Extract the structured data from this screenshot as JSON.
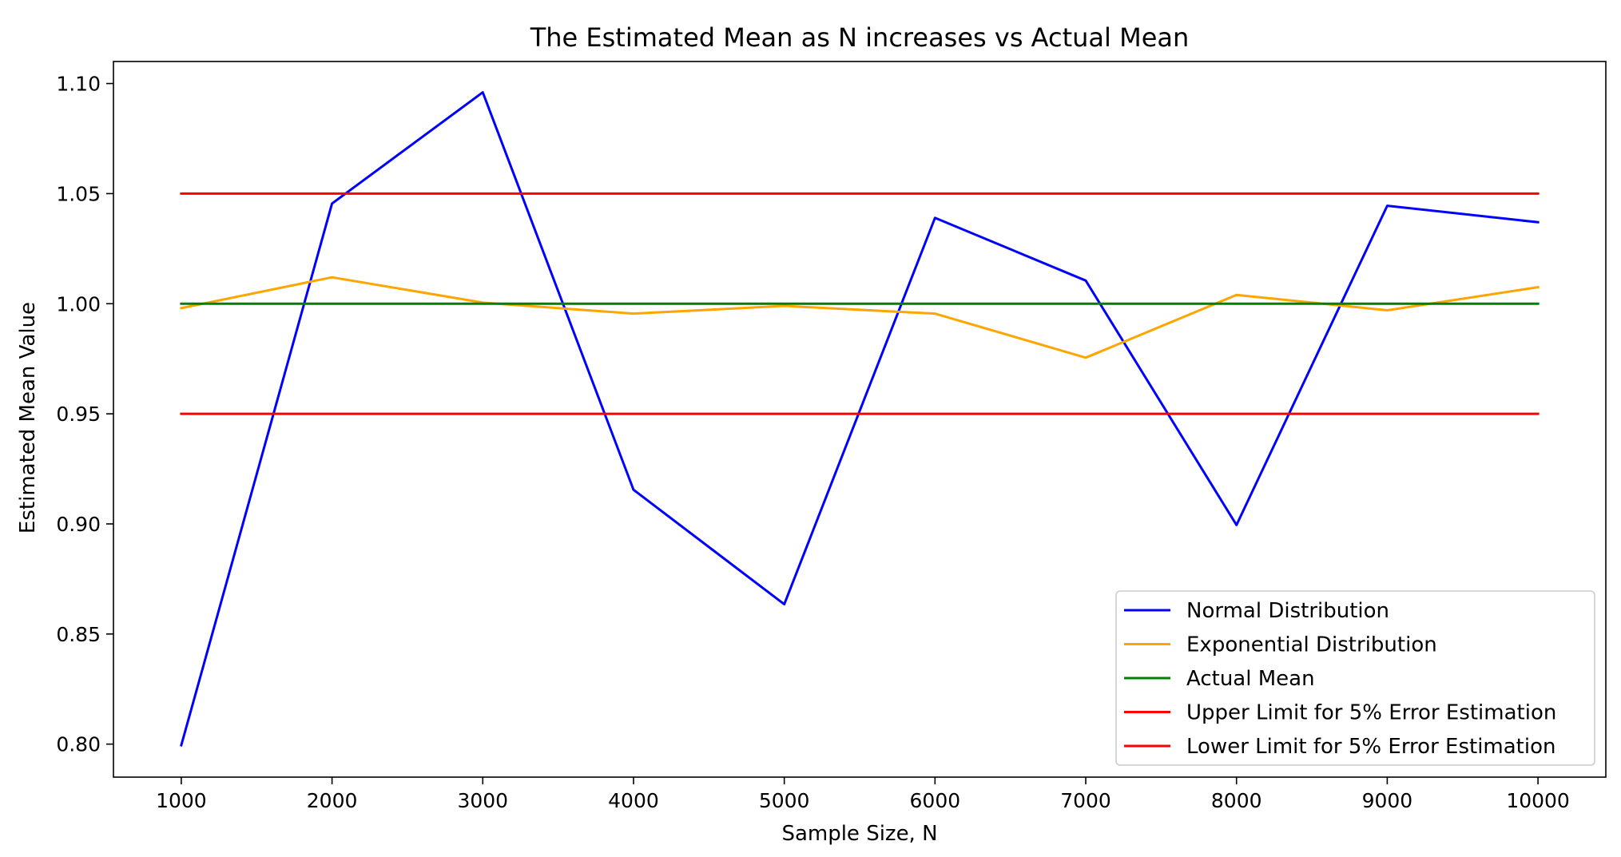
{
  "chart_data": {
    "type": "line",
    "title": "The Estimated Mean as N increases vs Actual Mean",
    "xlabel": "Sample Size, N",
    "ylabel": "Estimated Mean Value",
    "x": [
      1000,
      2000,
      3000,
      4000,
      5000,
      6000,
      7000,
      8000,
      9000,
      10000
    ],
    "xticks": [
      "1000",
      "2000",
      "3000",
      "4000",
      "5000",
      "6000",
      "7000",
      "8000",
      "9000",
      "10000"
    ],
    "yticks": [
      "0.80",
      "0.85",
      "0.90",
      "0.95",
      "1.00",
      "1.05",
      "1.10"
    ],
    "ytick_values": [
      0.8,
      0.85,
      0.9,
      0.95,
      1.0,
      1.05,
      1.1
    ],
    "xlim": [
      550,
      10450
    ],
    "ylim": [
      0.785,
      1.11
    ],
    "grid": false,
    "legend_position": "bottom-right",
    "series": [
      {
        "name": "Normal Distribution",
        "color": "#0000ff",
        "values": [
          0.7995,
          1.0455,
          1.096,
          0.9155,
          0.8635,
          1.039,
          1.0105,
          0.8995,
          1.0445,
          1.037
        ]
      },
      {
        "name": "Exponential Distribution",
        "color": "#ffa500",
        "values": [
          0.998,
          1.012,
          1.0005,
          0.9955,
          0.999,
          0.9955,
          0.9755,
          1.004,
          0.997,
          1.0075
        ]
      },
      {
        "name": "Actual Mean",
        "color": "#008000",
        "values": [
          1.0,
          1.0,
          1.0,
          1.0,
          1.0,
          1.0,
          1.0,
          1.0,
          1.0,
          1.0
        ]
      },
      {
        "name": "Upper Limit for 5% Error Estimation",
        "color": "#ff0000",
        "values": [
          1.05,
          1.05,
          1.05,
          1.05,
          1.05,
          1.05,
          1.05,
          1.05,
          1.05,
          1.05
        ]
      },
      {
        "name": "Lower Limit for 5% Error Estimation",
        "color": "#ff0000",
        "values": [
          0.95,
          0.95,
          0.95,
          0.95,
          0.95,
          0.95,
          0.95,
          0.95,
          0.95,
          0.95
        ]
      }
    ]
  }
}
